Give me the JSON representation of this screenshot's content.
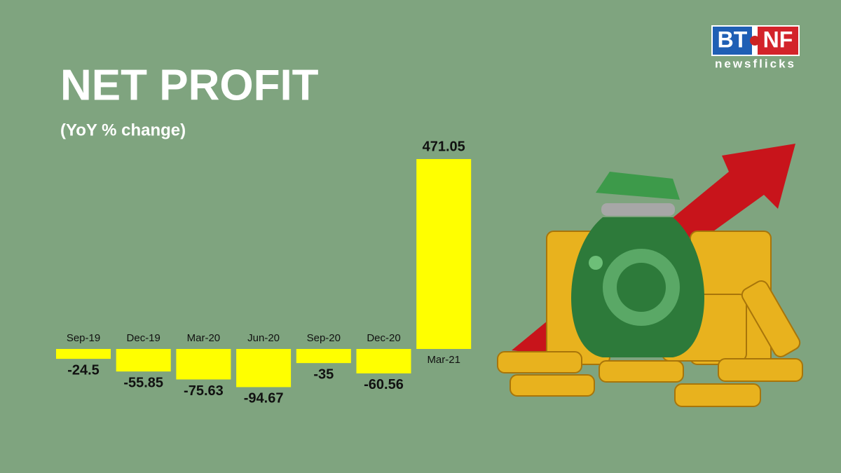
{
  "chart_data": {
    "type": "bar",
    "title": "NET PROFIT",
    "subtitle": "(YoY % change)",
    "categories": [
      "Sep-19",
      "Dec-19",
      "Mar-20",
      "Jun-20",
      "Sep-20",
      "Dec-20",
      "Mar-21"
    ],
    "values": [
      -24.5,
      -55.85,
      -75.63,
      -94.67,
      -35,
      -60.56,
      471.05
    ],
    "color": "#ffff00"
  },
  "logo": {
    "left": "BT",
    "right": "NF",
    "tagline": "newsflicks"
  }
}
